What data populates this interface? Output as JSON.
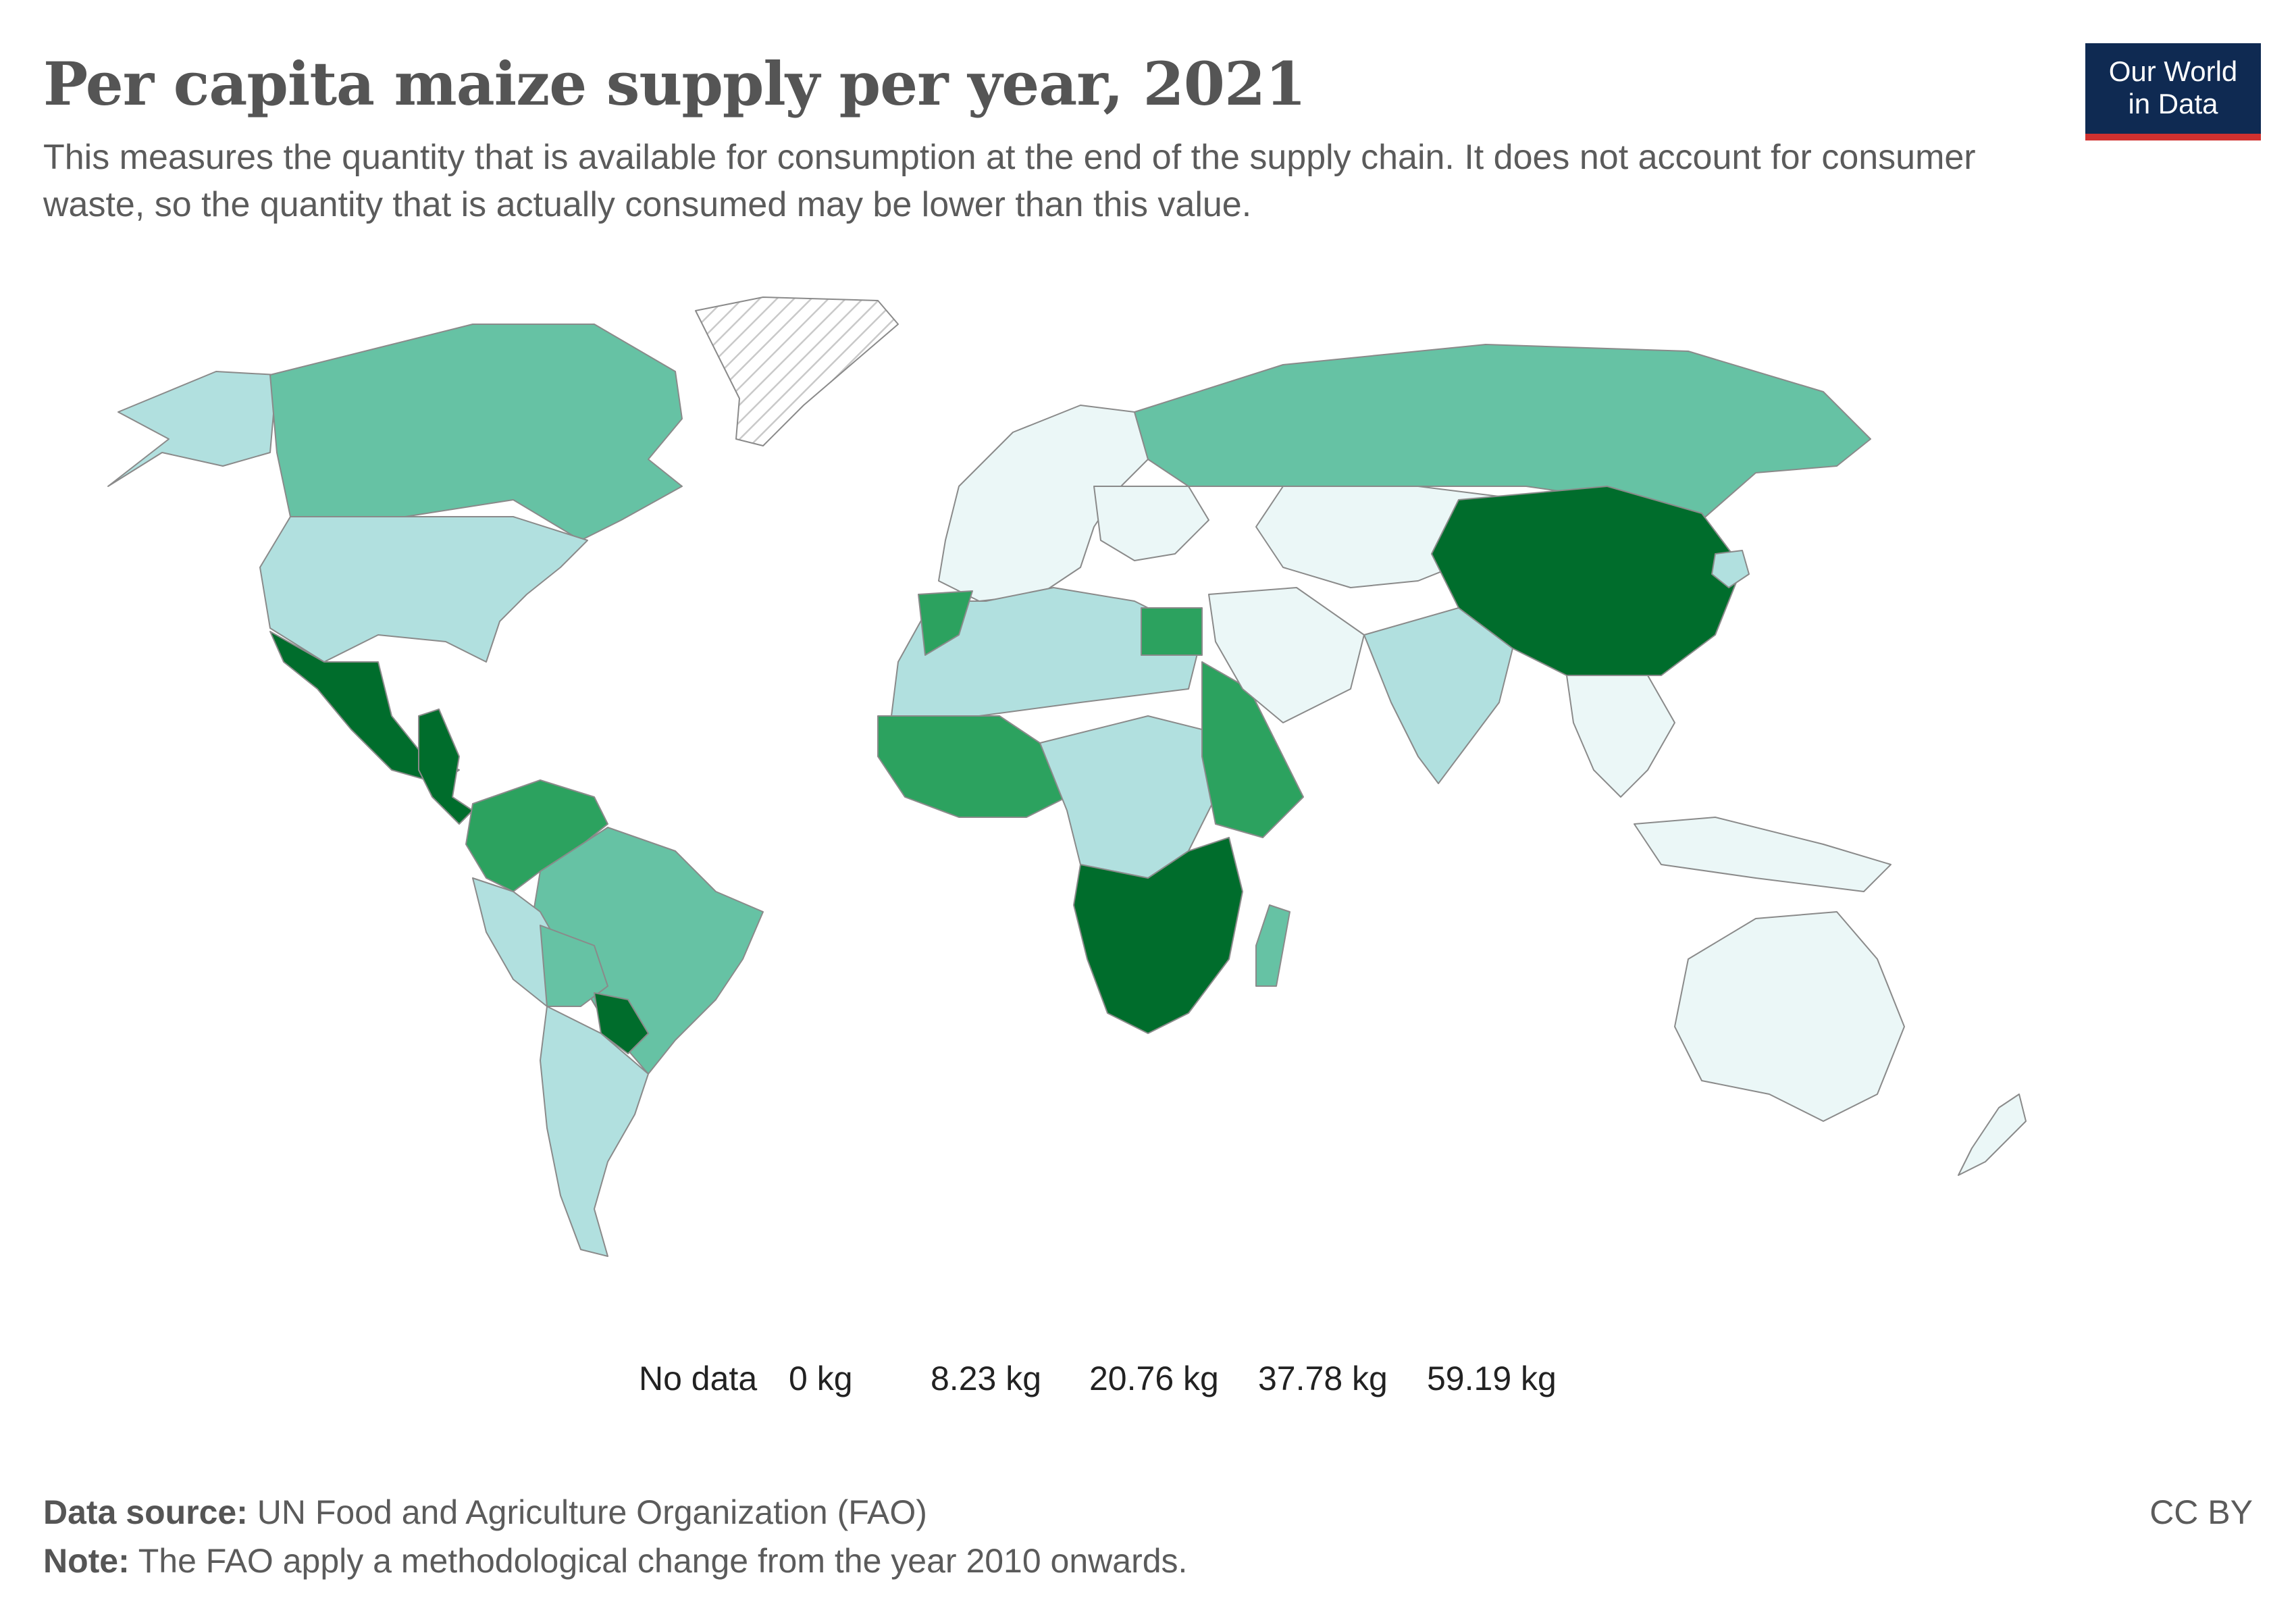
{
  "header": {
    "title": "Per capita maize supply per year, 2021",
    "subtitle": "This measures the quantity that is available for consumption at the end of the supply chain. It does not account for consumer waste, so the quantity that is actually consumed may be lower than this value.",
    "logo_line1": "Our World",
    "logo_line2": "in Data"
  },
  "legend": {
    "no_data_label": "No data",
    "bins": [
      {
        "label": "0 kg",
        "color": "#ebf7f7"
      },
      {
        "label": "8.23 kg",
        "color": "#b1e0df"
      },
      {
        "label": "20.76 kg",
        "color": "#66c2a4"
      },
      {
        "label": "37.78 kg",
        "color": "#2ca25f"
      },
      {
        "label": "59.19 kg",
        "color": "#006d2c"
      }
    ]
  },
  "colors": {
    "no_data": "#e3e3e3",
    "border": "#8a8a8a",
    "bin1": "#ebf7f7",
    "bin2": "#b1e0df",
    "bin3": "#66c2a4",
    "bin4": "#2ca25f",
    "bin5": "#006d2c"
  },
  "map": {
    "regions": [
      {
        "name": "United States",
        "bin": 2
      },
      {
        "name": "Canada",
        "bin": 3
      },
      {
        "name": "Alaska",
        "bin": 2
      },
      {
        "name": "Greenland",
        "bin": 0
      },
      {
        "name": "Mexico",
        "bin": 5
      },
      {
        "name": "Central America",
        "bin": 5
      },
      {
        "name": "Colombia / Venezuela",
        "bin": 4
      },
      {
        "name": "Brazil",
        "bin": 3
      },
      {
        "name": "Peru",
        "bin": 2
      },
      {
        "name": "Bolivia",
        "bin": 3
      },
      {
        "name": "Paraguay",
        "bin": 5
      },
      {
        "name": "Argentina / Chile",
        "bin": 2
      },
      {
        "name": "Russia",
        "bin": 1
      },
      {
        "name": "Europe",
        "bin": 1
      },
      {
        "name": "Eastern Europe",
        "bin": 3
      },
      {
        "name": "North Africa",
        "bin": 2
      },
      {
        "name": "Morocco",
        "bin": 4
      },
      {
        "name": "Egypt",
        "bin": 4
      },
      {
        "name": "West Africa",
        "bin": 4
      },
      {
        "name": "Central Africa",
        "bin": 2
      },
      {
        "name": "East Africa",
        "bin": 4
      },
      {
        "name": "Southern Africa",
        "bin": 5
      },
      {
        "name": "Middle East",
        "bin": 3
      },
      {
        "name": "Central Asia",
        "bin": 1
      },
      {
        "name": "India",
        "bin": 1
      },
      {
        "name": "China",
        "bin": 2
      },
      {
        "name": "North Korea",
        "bin": 5
      },
      {
        "name": "Southeast Asia",
        "bin": 2
      },
      {
        "name": "Indonesia",
        "bin": 1
      },
      {
        "name": "Australia",
        "bin": 1
      },
      {
        "name": "New Zealand",
        "bin": 1
      },
      {
        "name": "Madagascar",
        "bin": 1
      }
    ]
  },
  "footer": {
    "source_label": "Data source:",
    "source_text": " UN Food and Agriculture Organization (FAO)",
    "note_label": "Note:",
    "note_text": " The FAO apply a methodological change from the year 2010 onwards.",
    "license": "CC BY"
  }
}
